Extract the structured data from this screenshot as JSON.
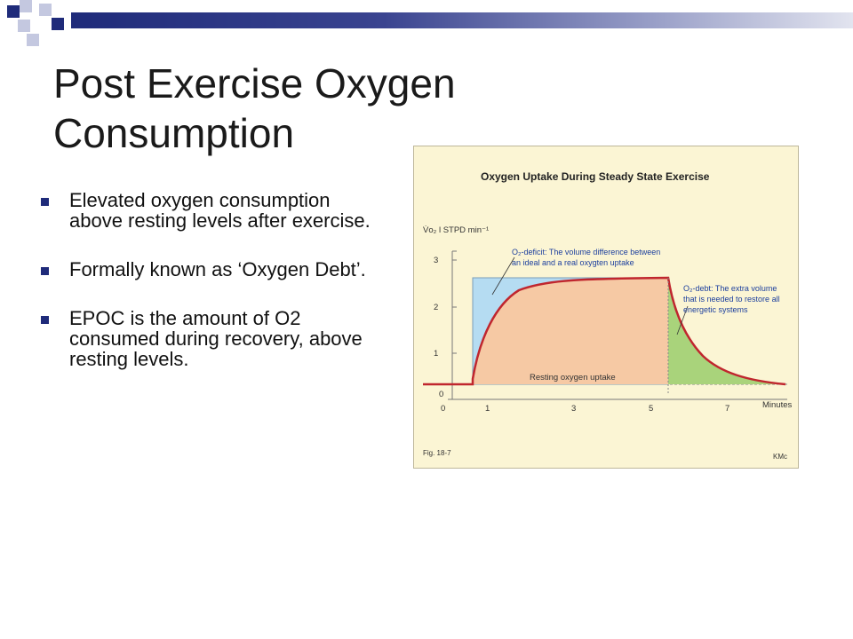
{
  "slide": {
    "title": "Post Exercise Oxygen Consumption",
    "bullets": [
      "Elevated oxygen consumption above resting levels after exercise.",
      "Formally known as ‘Oxygen Debt’.",
      "EPOC is the amount of O2 consumed during recovery, above resting levels."
    ]
  },
  "colors": {
    "header_bar": "#1f2b7a",
    "bullet": "#1f2b7a",
    "figure_bg": "#fbf5d4",
    "deficit_fill": "#b5dcf2",
    "uptake_fill": "#f6c9a4",
    "debt_fill": "#a9d37b",
    "curve": "#c0262e",
    "note_text": "#1c3f9e"
  },
  "figure": {
    "title": "Oxygen Uptake  During  Steady  State  Exercise",
    "y_axis_label": "V̇o₂ l  STPD min⁻¹",
    "y_ticks": [
      "0",
      "1",
      "2",
      "3"
    ],
    "x_ticks": [
      "0",
      "1",
      "3",
      "5",
      "7"
    ],
    "x_axis_label": "Minutes",
    "deficit_note": [
      "O₂-deficit: The volume difference between",
      "an ideal and a real oxygten uptake"
    ],
    "debt_note": [
      "O₂-debt: The extra volume",
      "that is needed to restore all",
      "energetic systems"
    ],
    "resting_label": "Resting oxygen uptake",
    "fig_label": "Fig. 18-7",
    "credit": "KMc"
  }
}
